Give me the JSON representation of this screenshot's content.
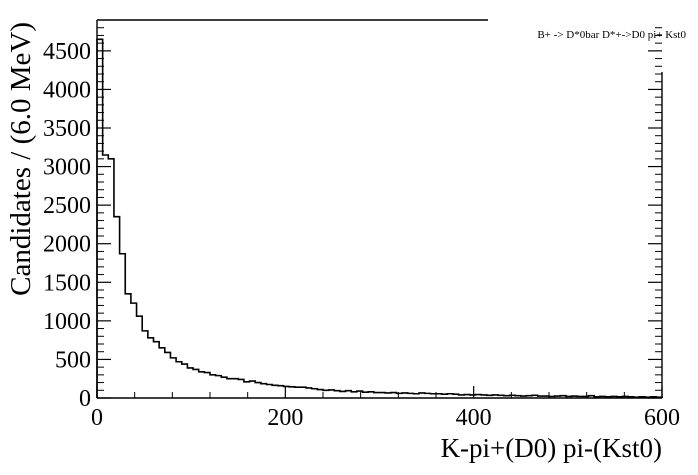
{
  "chart_data": {
    "type": "histogram",
    "title": "B+ -> D*0bar D*+->D0 pi+ Kst0",
    "xlabel": "K-pi+(D0)  pi-(Kst0)",
    "ylabel": "Candidates / (6.0 MeV)",
    "xlim": [
      0,
      600
    ],
    "ylim": [
      0,
      4900
    ],
    "x_ticks": [
      "0",
      "200",
      "400",
      "600"
    ],
    "y_ticks": [
      "0",
      "500",
      "1000",
      "1500",
      "2000",
      "2500",
      "3000",
      "3500",
      "4000",
      "4500"
    ],
    "bin_width": 6,
    "values": [
      4650,
      3150,
      3100,
      2350,
      1870,
      1350,
      1230,
      1060,
      870,
      780,
      730,
      650,
      590,
      520,
      470,
      440,
      390,
      370,
      340,
      330,
      300,
      290,
      270,
      250,
      250,
      240,
      210,
      220,
      200,
      185,
      175,
      165,
      160,
      150,
      145,
      140,
      140,
      130,
      120,
      110,
      100,
      105,
      95,
      85,
      95,
      80,
      90,
      75,
      80,
      70,
      70,
      65,
      70,
      60,
      65,
      60,
      55,
      65,
      60,
      55,
      55,
      50,
      55,
      50,
      40,
      45,
      40,
      45,
      40,
      35,
      40,
      35,
      30,
      35,
      30,
      25,
      30,
      35,
      25,
      25,
      20,
      25,
      30,
      20,
      25,
      20,
      20,
      30,
      15,
      20,
      15,
      20,
      15,
      20,
      15,
      10,
      15,
      10,
      15,
      10
    ],
    "grid": false,
    "legend": "none"
  }
}
